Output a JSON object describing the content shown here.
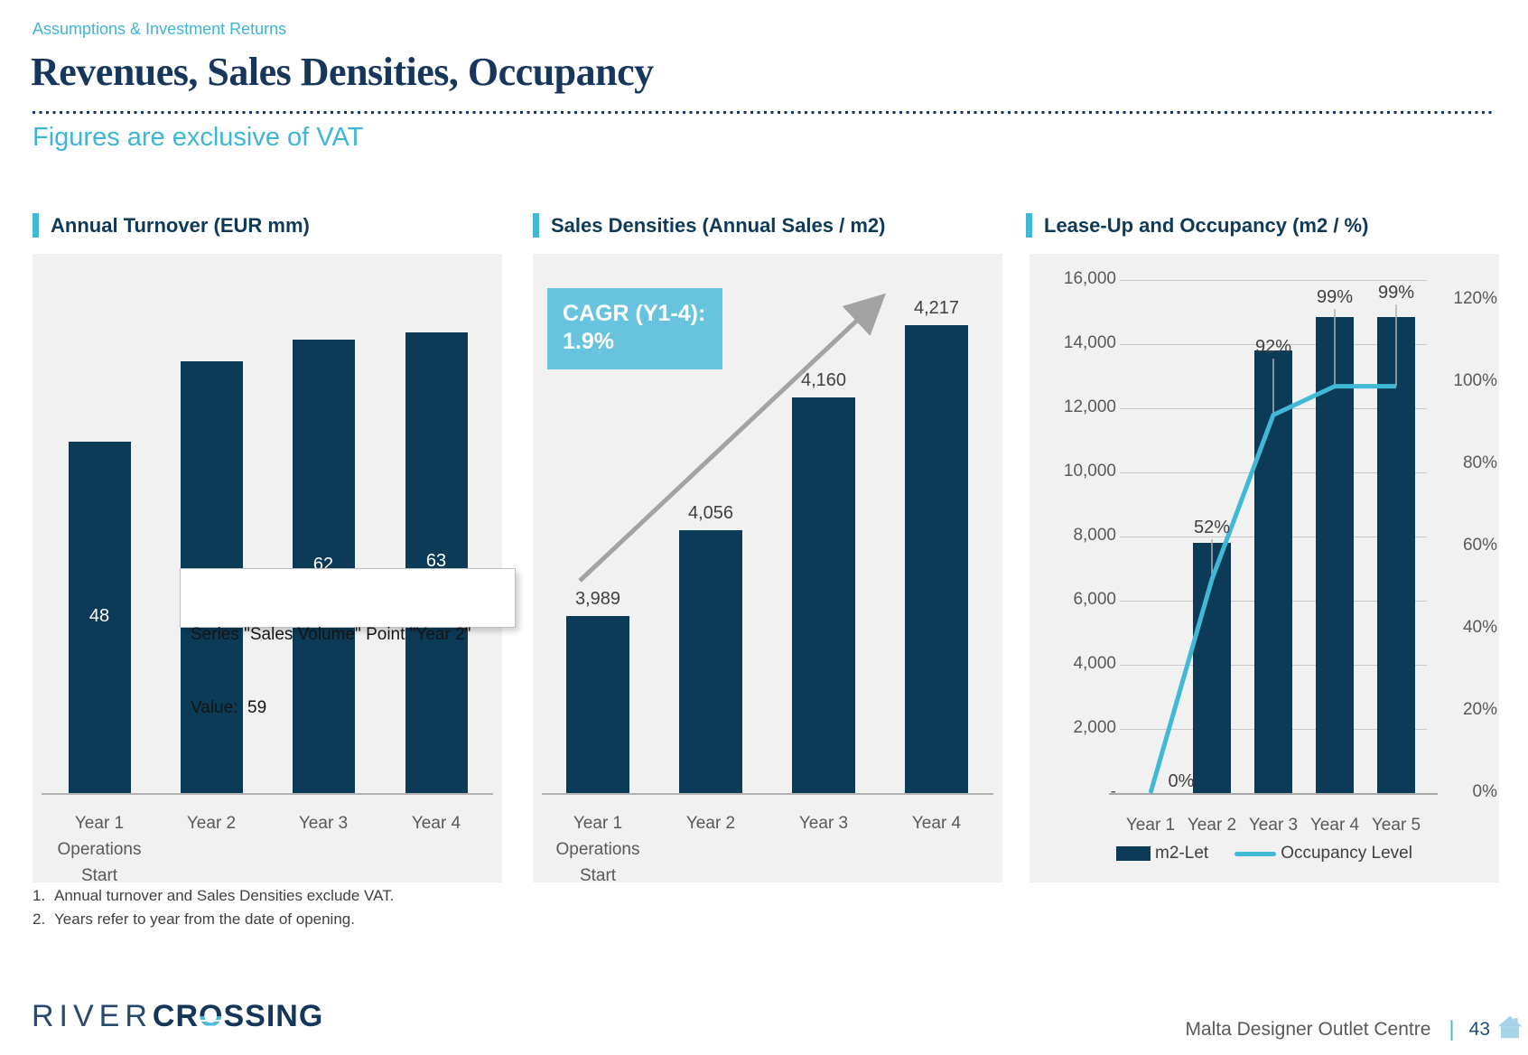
{
  "page": {
    "kicker": "Assumptions & Investment Returns",
    "title": "Revenues, Sales Densities, Occupancy",
    "subtitle": "Figures are exclusive of VAT",
    "footnotes": [
      {
        "n": "1.",
        "t": "Annual turnover and Sales Densities exclude VAT."
      },
      {
        "n": "2.",
        "t": "Years refer to year from the date of opening."
      }
    ],
    "footer": {
      "logo_river": "RIVER",
      "logo_cr": "CR",
      "logo_o": "O",
      "logo_ssing": "SSING",
      "project": "Malta Designer Outlet Centre",
      "separator": "|",
      "page_number": "43"
    }
  },
  "colors": {
    "bar_navy": "#0c3b58",
    "accent_teal": "#41b8d5",
    "title_navy": "#17365c",
    "panel_bg": "#f1f1f1",
    "line_blue": "#41b8d5",
    "cagr_box": "#68c3de",
    "arrow_gray": "#a3a3a3",
    "axis_text_gray": "#595959",
    "label_gray": "#404040",
    "page_number_navy": "#1f4e79",
    "house_icon_blue": "#a5d4e8"
  },
  "tooltip": {
    "line1": "Series \"Sales Volume\" Point \"Year 2\"",
    "line2": "Value:  59"
  },
  "chart_data": [
    {
      "type": "bar",
      "title": "Annual Turnover (EUR mm)",
      "categories": [
        [
          "Year 1",
          "Operations",
          "Start"
        ],
        [
          "Year 2"
        ],
        [
          "Year 3"
        ],
        [
          "Year 4"
        ]
      ],
      "series_name": "Sales Volume",
      "values": [
        48,
        59,
        62,
        63
      ],
      "value_labels": [
        "48",
        "59",
        "62",
        "63"
      ],
      "label_position": "inside-center",
      "ylim": [
        0,
        70
      ],
      "grid": false,
      "legend": "none"
    },
    {
      "type": "bar",
      "title": "Sales Densities (Annual Sales / m2)",
      "categories": [
        [
          "Year 1",
          "Operations",
          "Start"
        ],
        [
          "Year 2"
        ],
        [
          "Year 3"
        ],
        [
          "Year 4"
        ]
      ],
      "values": [
        3989,
        4056,
        4160,
        4217
      ],
      "value_labels": [
        "3,989",
        "4,056",
        "4,160",
        "4,217"
      ],
      "label_position": "outside-end",
      "ylim_estimated": [
        3850,
        4250
      ],
      "grid": false,
      "legend": "none",
      "annotation": {
        "line1": "CAGR (Y1-4):",
        "line2": "1.9%"
      },
      "trend_arrow": true
    },
    {
      "type": "combo",
      "title": "Lease-Up and Occupancy (m2 / %)",
      "categories": [
        "Year 1",
        "Year 2",
        "Year 3",
        "Year 4",
        "Year 5"
      ],
      "series": [
        {
          "name": "m2-Let",
          "type": "bar",
          "axis": "left",
          "values": [
            0,
            7800,
            13800,
            14850,
            14850
          ]
        },
        {
          "name": "Occupancy Level",
          "type": "line",
          "axis": "right",
          "values_pct": [
            0,
            52,
            92,
            99,
            99
          ],
          "point_labels": [
            "0%",
            "52%",
            "92%",
            "99%",
            "99%"
          ]
        }
      ],
      "left_axis": {
        "min": 0,
        "max": 16000,
        "step": 2000,
        "ticks": [
          "16,000",
          "14,000",
          "12,000",
          "10,000",
          "8,000",
          "6,000",
          "4,000",
          "2,000",
          "-"
        ]
      },
      "right_axis": {
        "min": 0,
        "max": 120,
        "step": 20,
        "ticks": [
          "120%",
          "100%",
          "80%",
          "60%",
          "40%",
          "20%",
          "0%"
        ]
      },
      "grid": true,
      "legend": "bottom"
    }
  ]
}
